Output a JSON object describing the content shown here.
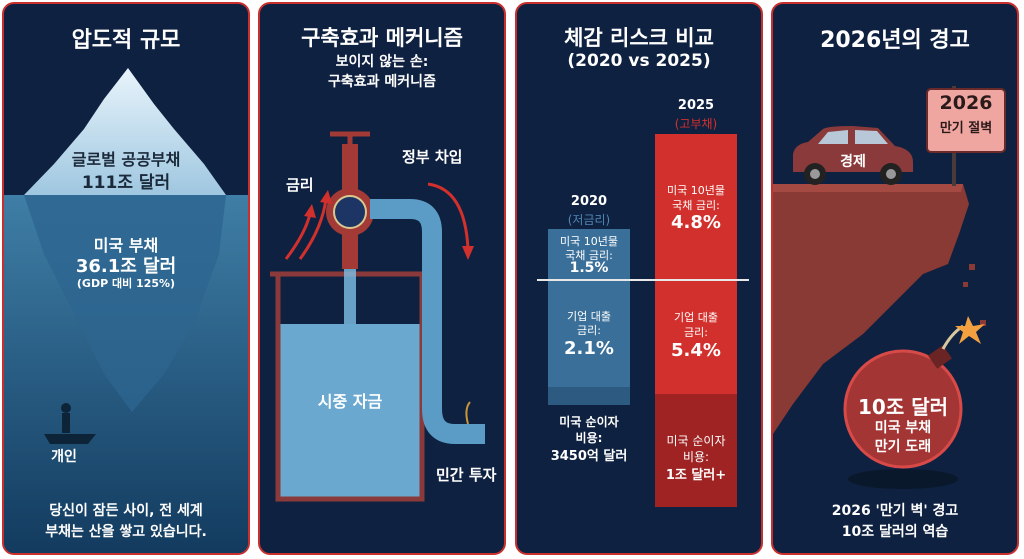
{
  "panel1": {
    "title": "압도적 규모",
    "global_label": "글로벌 공공부채",
    "global_value": "111조 달러",
    "us_label": "미국 부채",
    "us_value": "36.1조 달러",
    "us_ratio": "(GDP 대비 125%)",
    "person_label": "개인",
    "caption_line1": "당신이 잠든 사이, 전 세계",
    "caption_line2": "부채는 산을 쌓고 있습니다."
  },
  "panel2": {
    "title": "구축효과 메커니즘",
    "subtitle_line1": "보이지 않는 손:",
    "subtitle_line2": "구축효과 메커니즘",
    "rate_label": "금리",
    "gov_label": "정부 차입",
    "market_label": "시중 자금",
    "private_label": "민간 투자"
  },
  "panel3": {
    "title": "체감 리스크 비교",
    "subtitle": "(2020 vs 2025)",
    "bars": [
      {
        "year": "2020",
        "tag": "(저금리)",
        "bond_label": "미국 10년물 국채 금리:",
        "bond_label_1": "미국 10년물",
        "bond_label_2": "국채 금리:",
        "bond_value": "1.5%",
        "corp_label_1": "기업 대출",
        "corp_label_2": "금리:",
        "corp_value": "2.1%",
        "interest_label_1": "미국 순이자",
        "interest_label_2": "비용:",
        "interest_value": "3450억 달러",
        "color": "#3a6f99"
      },
      {
        "year": "2025",
        "tag": "(고부채)",
        "bond_label_1": "미국 10년물",
        "bond_label_2": "국채 금리:",
        "bond_value": "4.8%",
        "corp_label_1": "기업 대출",
        "corp_label_2": "금리:",
        "corp_value": "5.4%",
        "interest_label_1": "미국 순이자",
        "interest_label_2": "비용:",
        "interest_value": "1조 달러+",
        "color": "#d2302c"
      }
    ]
  },
  "panel4": {
    "title": "2026년의 경고",
    "sign_year": "2026",
    "sign_text": "만기 절벽",
    "car_label": "경제",
    "bomb_value": "10조 달러",
    "bomb_line1": "미국 부채",
    "bomb_line2": "만기 도래",
    "caption_line1": "2026 '만기 벽' 경고",
    "caption_line2": "10조 달러의 역습"
  },
  "colors": {
    "border": "#c8302e",
    "background": "#0f2140",
    "accent_red": "#d2302c",
    "accent_blue": "#3a6f99"
  }
}
